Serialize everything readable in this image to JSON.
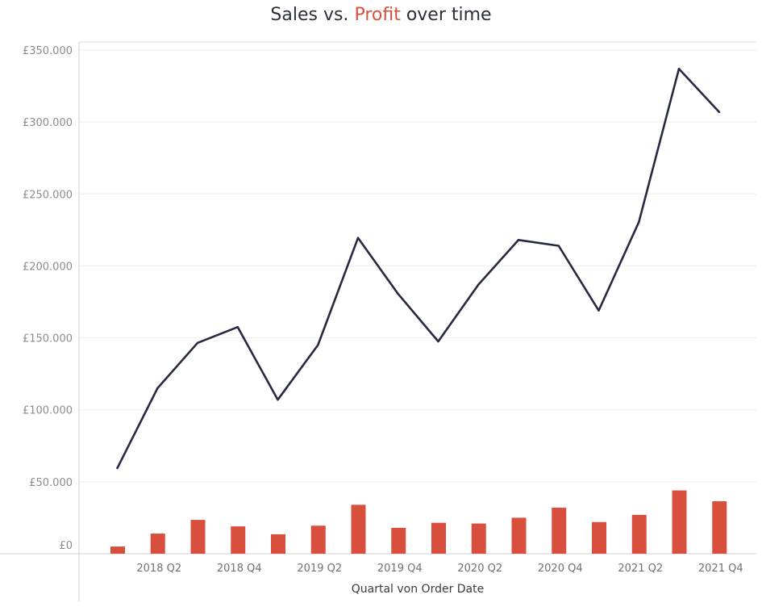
{
  "title": {
    "part1": "Sales vs. ",
    "part2": "Profit",
    "part3": " over time"
  },
  "colors": {
    "sales": "#262a40",
    "profit": "#d94f3d"
  },
  "chart_data": {
    "type": "line",
    "xlabel": "Quartal von Order Date",
    "ylabel": "",
    "ylim": [
      0,
      350000
    ],
    "yticks": [
      0,
      50000,
      100000,
      150000,
      200000,
      250000,
      300000,
      350000
    ],
    "ytick_labels": [
      "£0",
      "£50.000",
      "£100.000",
      "£150.000",
      "£200.000",
      "£250.000",
      "£300.000",
      "£350.000"
    ],
    "categories": [
      "2018 Q1",
      "2018 Q2",
      "2018 Q3",
      "2018 Q4",
      "2019 Q1",
      "2019 Q2",
      "2019 Q3",
      "2019 Q4",
      "2020 Q1",
      "2020 Q2",
      "2020 Q3",
      "2020 Q4",
      "2021 Q1",
      "2021 Q2",
      "2021 Q3",
      "2021 Q4"
    ],
    "xtick_labels": [
      "",
      "2018 Q2",
      "",
      "2018 Q4",
      "",
      "2019 Q2",
      "",
      "2019 Q4",
      "",
      "2020 Q2",
      "",
      "2020 Q4",
      "",
      "2021 Q2",
      "",
      "2021 Q4"
    ],
    "grid": true,
    "series": [
      {
        "type": "line",
        "values": [
          59500,
          115000,
          146500,
          157500,
          107000,
          145000,
          219500,
          180500,
          147500,
          187000,
          218000,
          214000,
          169000,
          230500,
          337000,
          307000
        ]
      },
      {
        "type": "bar",
        "values": [
          5000,
          14000,
          23500,
          19000,
          13500,
          19500,
          34000,
          18000,
          21500,
          21000,
          25000,
          32000,
          22000,
          27000,
          44000,
          36500
        ]
      }
    ]
  }
}
